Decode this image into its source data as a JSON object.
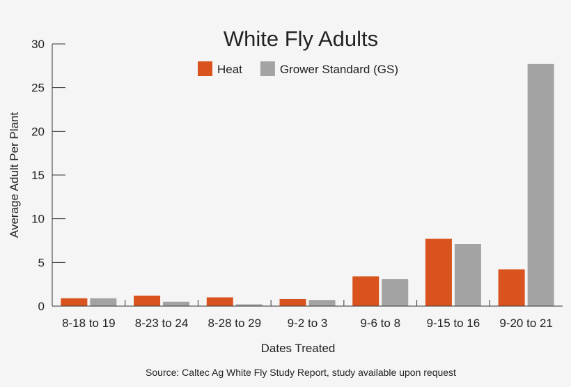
{
  "chart_data": {
    "type": "bar",
    "title": "White Fly Adults",
    "xlabel": "Dates Treated",
    "ylabel": "Average Adult Per Plant",
    "ylim": [
      0,
      30
    ],
    "yticks": [
      0,
      5,
      10,
      15,
      20,
      25,
      30
    ],
    "grid": false,
    "legend_position": "top",
    "categories": [
      "8-18 to 19",
      "8-23 to 24",
      "8-28 to 29",
      "9-2 to 3",
      "9-6 to 8",
      "9-15 to 16",
      "9-20 to 21"
    ],
    "series": [
      {
        "name": "Heat",
        "color": "#d9531e",
        "values": [
          0.9,
          1.2,
          1.0,
          0.8,
          3.4,
          7.7,
          4.2
        ]
      },
      {
        "name": "Grower Standard (GS)",
        "color": "#a3a3a3",
        "values": [
          0.9,
          0.5,
          0.2,
          0.7,
          3.1,
          7.1,
          27.7
        ]
      }
    ],
    "footnote": "Source: Caltec Ag White Fly Study Report, study available upon request"
  }
}
